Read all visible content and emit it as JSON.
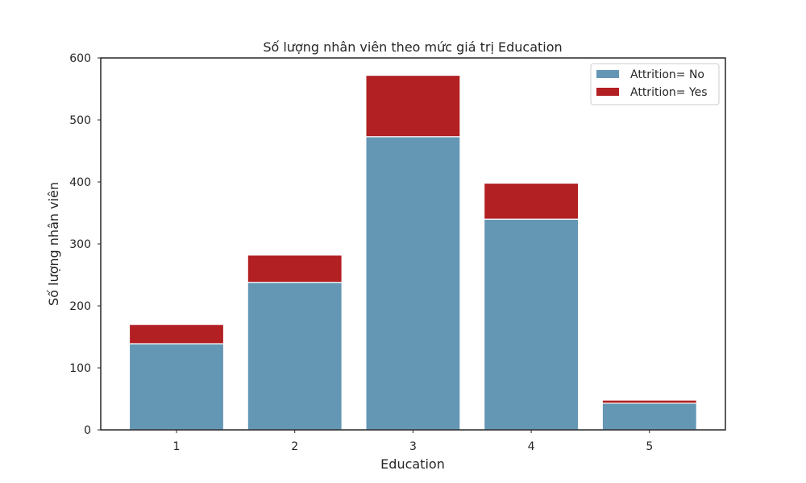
{
  "chart_data": {
    "type": "bar",
    "stacked": true,
    "title": "Số lượng nhân viên theo mức giá trị Education",
    "xlabel": "Education",
    "ylabel": "Số lượng nhân viên",
    "categories": [
      "1",
      "2",
      "3",
      "4",
      "5"
    ],
    "series": [
      {
        "name": "Attrition= No",
        "values": [
          139,
          238,
          473,
          340,
          43
        ],
        "color": "#6497b4"
      },
      {
        "name": "Attrition= Yes",
        "values": [
          31,
          44,
          99,
          58,
          5
        ],
        "color": "#b22023"
      }
    ],
    "ylim": [
      0,
      600
    ],
    "yticks": [
      0,
      100,
      200,
      300,
      400,
      500,
      600
    ],
    "grid": false,
    "legend_position": "top-right"
  }
}
